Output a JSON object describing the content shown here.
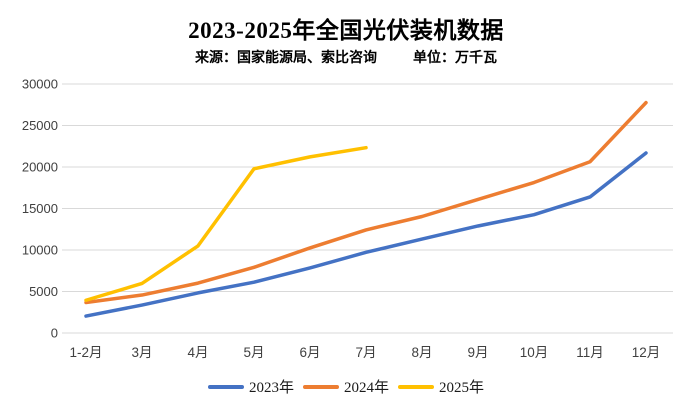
{
  "title": "2023-2025年全国光伏装机数据",
  "subtitle": {
    "source": "来源：国家能源局、索比咨询",
    "unit": "单位：万千瓦"
  },
  "colors": {
    "background": "#FFFFFF",
    "grid": "#D9D9D9",
    "axis_text": "#404040",
    "title_text": "#000000",
    "legend_text": "#1A1A1A"
  },
  "chart_data": {
    "type": "line",
    "title": "2023-2025年全国光伏装机数据",
    "source_note": "来源：国家能源局、索比咨询",
    "unit_note": "单位：万千瓦",
    "xlabel": "",
    "ylabel": "万千瓦",
    "categories": [
      "1-2月",
      "3月",
      "4月",
      "5月",
      "6月",
      "7月",
      "8月",
      "9月",
      "10月",
      "11月",
      "12月"
    ],
    "series": [
      {
        "name": "2023年",
        "color": "#4472C4",
        "values": [
          2037,
          3366,
          4831,
          6121,
          7842,
          9716,
          11316,
          12894,
          14256,
          16388,
          21688
        ]
      },
      {
        "name": "2024年",
        "color": "#ED7D31",
        "values": [
          3672,
          4574,
          6011,
          7915,
          10248,
          12416,
          14036,
          16088,
          18130,
          20632,
          27757
        ]
      },
      {
        "name": "2025年",
        "color": "#FFC000",
        "values": [
          3947,
          5971,
          10493,
          19785,
          21221,
          22325
        ]
      }
    ],
    "ylim": [
      0,
      30000
    ],
    "y_ticks": [
      0,
      5000,
      10000,
      15000,
      20000,
      25000,
      30000
    ],
    "grid": true,
    "legend_position": "bottom"
  }
}
